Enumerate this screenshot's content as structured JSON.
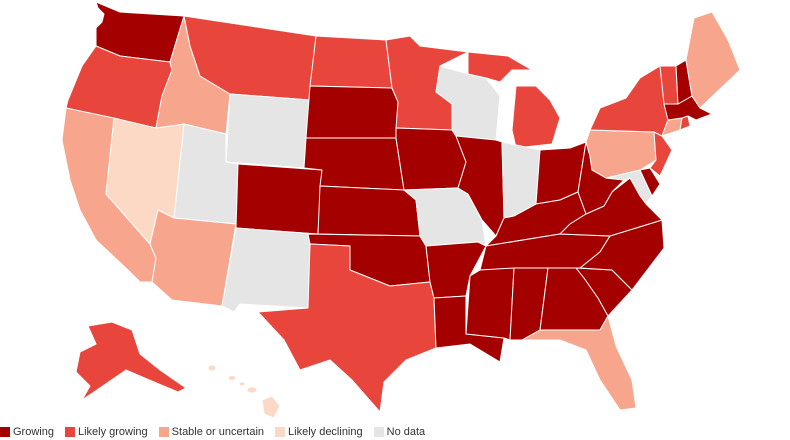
{
  "colors": {
    "growing": "#a50000",
    "likely_growing": "#e8463c",
    "stable": "#f7a58c",
    "likely_declining": "#fcd9c4",
    "no_data": "#e5e5e5"
  },
  "legend": [
    {
      "label": "Growing",
      "color": "#a50000"
    },
    {
      "label": "Likely growing",
      "color": "#e8463c"
    },
    {
      "label": "Stable or uncertain",
      "color": "#f7a58c"
    },
    {
      "label": "Likely declining",
      "color": "#fcd9c4"
    },
    {
      "label": "No data",
      "color": "#e5e5e5"
    }
  ],
  "states": {
    "WA": "growing",
    "OR": "likely_growing",
    "CA": "stable",
    "ID": "stable",
    "NV": "likely_declining",
    "MT": "likely_growing",
    "WY": "no_data",
    "UT": "no_data",
    "AZ": "stable",
    "CO": "growing",
    "NM": "no_data",
    "ND": "likely_growing",
    "SD": "growing",
    "NE": "growing",
    "KS": "growing",
    "OK": "growing",
    "TX": "likely_growing",
    "MN": "likely_growing",
    "IA": "growing",
    "MO": "no_data",
    "AR": "growing",
    "LA": "growing",
    "WI": "no_data",
    "IL": "growing",
    "MI": "likely_growing",
    "IN": "no_data",
    "OH": "growing",
    "KY": "growing",
    "TN": "growing",
    "MS": "growing",
    "AL": "growing",
    "GA": "growing",
    "FL": "stable",
    "SC": "growing",
    "NC": "growing",
    "VA": "growing",
    "WV": "growing",
    "MD": "no_data",
    "DE": "growing",
    "PA": "stable",
    "NJ": "likely_growing",
    "NY": "likely_growing",
    "CT": "stable",
    "RI": "likely_growing",
    "MA": "growing",
    "VT": "likely_growing",
    "NH": "growing",
    "ME": "stable",
    "AK": "likely_growing",
    "HI": "likely_declining"
  }
}
